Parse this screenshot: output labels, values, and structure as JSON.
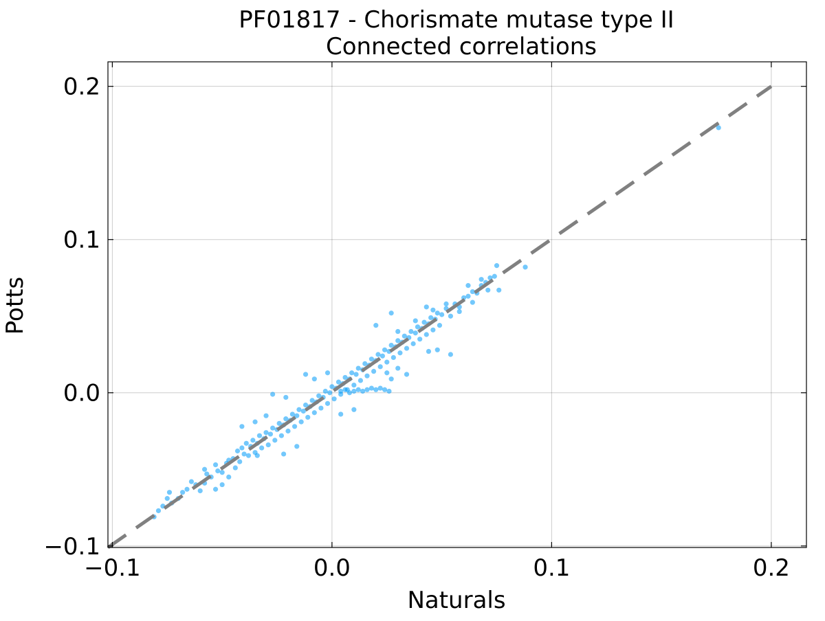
{
  "chart_data": {
    "type": "scatter",
    "title": "PF01817 - Chorismate mutase type II",
    "subtitle": "Connected correlations",
    "xlabel": "Naturals",
    "ylabel": "Potts",
    "xlim": [
      -0.102,
      0.216
    ],
    "ylim": [
      -0.101,
      0.216
    ],
    "xticks": [
      -0.1,
      0.0,
      0.1,
      0.2
    ],
    "yticks": [
      -0.1,
      0.0,
      0.1,
      0.2
    ],
    "xtick_labels": [
      "−0.1",
      "0.0",
      "0.1",
      "0.2"
    ],
    "ytick_labels": [
      "−0.1",
      "0.0",
      "0.1",
      "0.2"
    ],
    "grid": true,
    "legend": "none",
    "reference_line": {
      "style": "dashed",
      "color": "#808080",
      "x": [
        -0.102,
        0.2
      ],
      "y": [
        -0.101,
        0.2
      ]
    },
    "series": [
      {
        "color": "#009af9",
        "points": [
          [
            -0.081,
            -0.081
          ],
          [
            -0.079,
            -0.077
          ],
          [
            -0.077,
            -0.074
          ],
          [
            -0.075,
            -0.069
          ],
          [
            -0.07,
            -0.069
          ],
          [
            -0.074,
            -0.065
          ],
          [
            -0.073,
            -0.072
          ],
          [
            -0.068,
            -0.065
          ],
          [
            -0.066,
            -0.063
          ],
          [
            -0.064,
            -0.058
          ],
          [
            -0.062,
            -0.06
          ],
          [
            -0.058,
            -0.059
          ],
          [
            -0.057,
            -0.053
          ],
          [
            -0.055,
            -0.055
          ],
          [
            -0.053,
            -0.047
          ],
          [
            -0.052,
            -0.051
          ],
          [
            -0.05,
            -0.052
          ],
          [
            -0.048,
            -0.046
          ],
          [
            -0.047,
            -0.044
          ],
          [
            -0.045,
            -0.043
          ],
          [
            -0.044,
            -0.049
          ],
          [
            -0.043,
            -0.038
          ],
          [
            -0.042,
            -0.045
          ],
          [
            -0.041,
            -0.036
          ],
          [
            -0.04,
            -0.04
          ],
          [
            -0.039,
            -0.033
          ],
          [
            -0.038,
            -0.041
          ],
          [
            -0.037,
            -0.035
          ],
          [
            -0.036,
            -0.031
          ],
          [
            -0.035,
            -0.039
          ],
          [
            -0.041,
            -0.022
          ],
          [
            -0.034,
            -0.033
          ],
          [
            -0.033,
            -0.028
          ],
          [
            -0.032,
            -0.036
          ],
          [
            -0.031,
            -0.03
          ],
          [
            -0.03,
            -0.026
          ],
          [
            -0.029,
            -0.034
          ],
          [
            -0.028,
            -0.027
          ],
          [
            -0.027,
            -0.023
          ],
          [
            -0.026,
            -0.031
          ],
          [
            -0.025,
            -0.024
          ],
          [
            -0.024,
            -0.02
          ],
          [
            -0.023,
            -0.028
          ],
          [
            -0.022,
            -0.021
          ],
          [
            -0.021,
            -0.017
          ],
          [
            -0.02,
            -0.025
          ],
          [
            -0.019,
            -0.018
          ],
          [
            -0.018,
            -0.014
          ],
          [
            -0.017,
            -0.022
          ],
          [
            -0.016,
            -0.015
          ],
          [
            -0.015,
            -0.011
          ],
          [
            -0.014,
            -0.019
          ],
          [
            -0.013,
            -0.012
          ],
          [
            -0.012,
            -0.008
          ],
          [
            -0.011,
            -0.016
          ],
          [
            -0.01,
            -0.009
          ],
          [
            -0.009,
            -0.005
          ],
          [
            -0.008,
            -0.013
          ],
          [
            -0.007,
            -0.006
          ],
          [
            -0.006,
            -0.002
          ],
          [
            -0.005,
            -0.01
          ],
          [
            -0.004,
            -0.003
          ],
          [
            -0.003,
            0.001
          ],
          [
            -0.002,
            -0.007
          ],
          [
            -0.001,
            0.0
          ],
          [
            0.0,
            0.004
          ],
          [
            0.001,
            -0.004
          ],
          [
            0.002,
            0.003
          ],
          [
            0.003,
            0.007
          ],
          [
            0.004,
            -0.001
          ],
          [
            0.005,
            0.006
          ],
          [
            0.006,
            0.01
          ],
          [
            0.007,
            0.002
          ],
          [
            0.008,
            0.009
          ],
          [
            0.009,
            0.013
          ],
          [
            0.01,
            0.005
          ],
          [
            0.011,
            0.012
          ],
          [
            0.012,
            0.016
          ],
          [
            0.013,
            0.008
          ],
          [
            0.014,
            0.015
          ],
          [
            0.015,
            0.019
          ],
          [
            0.016,
            0.011
          ],
          [
            0.017,
            0.018
          ],
          [
            0.018,
            0.022
          ],
          [
            0.019,
            0.014
          ],
          [
            0.02,
            0.021
          ],
          [
            0.021,
            0.025
          ],
          [
            0.022,
            0.017
          ],
          [
            0.023,
            0.024
          ],
          [
            0.024,
            0.028
          ],
          [
            0.025,
            0.02
          ],
          [
            0.026,
            0.027
          ],
          [
            0.027,
            0.031
          ],
          [
            0.028,
            0.023
          ],
          [
            0.029,
            0.03
          ],
          [
            0.03,
            0.034
          ],
          [
            0.031,
            0.026
          ],
          [
            0.032,
            0.033
          ],
          [
            0.033,
            0.037
          ],
          [
            0.034,
            0.029
          ],
          [
            0.035,
            0.036
          ],
          [
            0.036,
            0.04
          ],
          [
            0.037,
            0.032
          ],
          [
            0.038,
            0.039
          ],
          [
            0.039,
            0.043
          ],
          [
            0.04,
            0.035
          ],
          [
            0.041,
            0.042
          ],
          [
            0.042,
            0.046
          ],
          [
            0.043,
            0.038
          ],
          [
            0.044,
            0.045
          ],
          [
            0.045,
            0.049
          ],
          [
            0.046,
            0.041
          ],
          [
            0.047,
            0.048
          ],
          [
            0.048,
            0.052
          ],
          [
            0.049,
            0.044
          ],
          [
            0.05,
            0.051
          ],
          [
            0.052,
            0.055
          ],
          [
            0.054,
            0.05
          ],
          [
            0.056,
            0.058
          ],
          [
            0.058,
            0.056
          ],
          [
            0.06,
            0.062
          ],
          [
            0.062,
            0.063
          ],
          [
            0.064,
            0.066
          ],
          [
            0.066,
            0.065
          ],
          [
            0.068,
            0.07
          ],
          [
            0.07,
            0.072
          ],
          [
            0.072,
            0.075
          ],
          [
            0.074,
            0.076
          ],
          [
            0.071,
            0.067
          ],
          [
            0.076,
            0.067
          ],
          [
            0.075,
            0.083
          ],
          [
            0.088,
            0.082
          ],
          [
            0.176,
            0.173
          ],
          [
            0.004,
            0.001
          ],
          [
            0.006,
            0.002
          ],
          [
            0.008,
            0.0
          ],
          [
            0.01,
            0.001
          ],
          [
            0.012,
            0.002
          ],
          [
            0.014,
            0.001
          ],
          [
            0.016,
            0.002
          ],
          [
            0.018,
            0.003
          ],
          [
            0.02,
            0.002
          ],
          [
            0.022,
            0.003
          ],
          [
            0.024,
            0.002
          ],
          [
            0.026,
            0.001
          ],
          [
            0.025,
            0.013
          ],
          [
            0.027,
            0.009
          ],
          [
            0.03,
            0.016
          ],
          [
            0.034,
            0.012
          ],
          [
            0.044,
            0.027
          ],
          [
            0.048,
            0.028
          ],
          [
            0.054,
            0.025
          ],
          [
            0.043,
            0.056
          ],
          [
            0.052,
            0.058
          ],
          [
            0.058,
            0.053
          ],
          [
            0.027,
            0.052
          ],
          [
            0.02,
            0.044
          ],
          [
            -0.012,
            0.012
          ],
          [
            -0.021,
            -0.003
          ],
          [
            -0.027,
            -0.001
          ],
          [
            -0.03,
            -0.015
          ],
          [
            -0.035,
            -0.019
          ],
          [
            -0.022,
            -0.04
          ],
          [
            -0.016,
            -0.035
          ],
          [
            -0.05,
            -0.06
          ],
          [
            -0.053,
            -0.063
          ],
          [
            -0.047,
            -0.055
          ],
          [
            -0.06,
            -0.064
          ],
          [
            -0.058,
            -0.05
          ],
          [
            -0.034,
            -0.041
          ],
          [
            0.01,
            -0.011
          ],
          [
            0.004,
            -0.014
          ],
          [
            0.03,
            0.04
          ],
          [
            0.038,
            0.047
          ],
          [
            0.062,
            0.07
          ],
          [
            0.068,
            0.074
          ],
          [
            0.064,
            0.059
          ],
          [
            0.046,
            0.054
          ],
          [
            -0.002,
            0.013
          ],
          [
            -0.008,
            0.009
          ]
        ]
      }
    ]
  }
}
